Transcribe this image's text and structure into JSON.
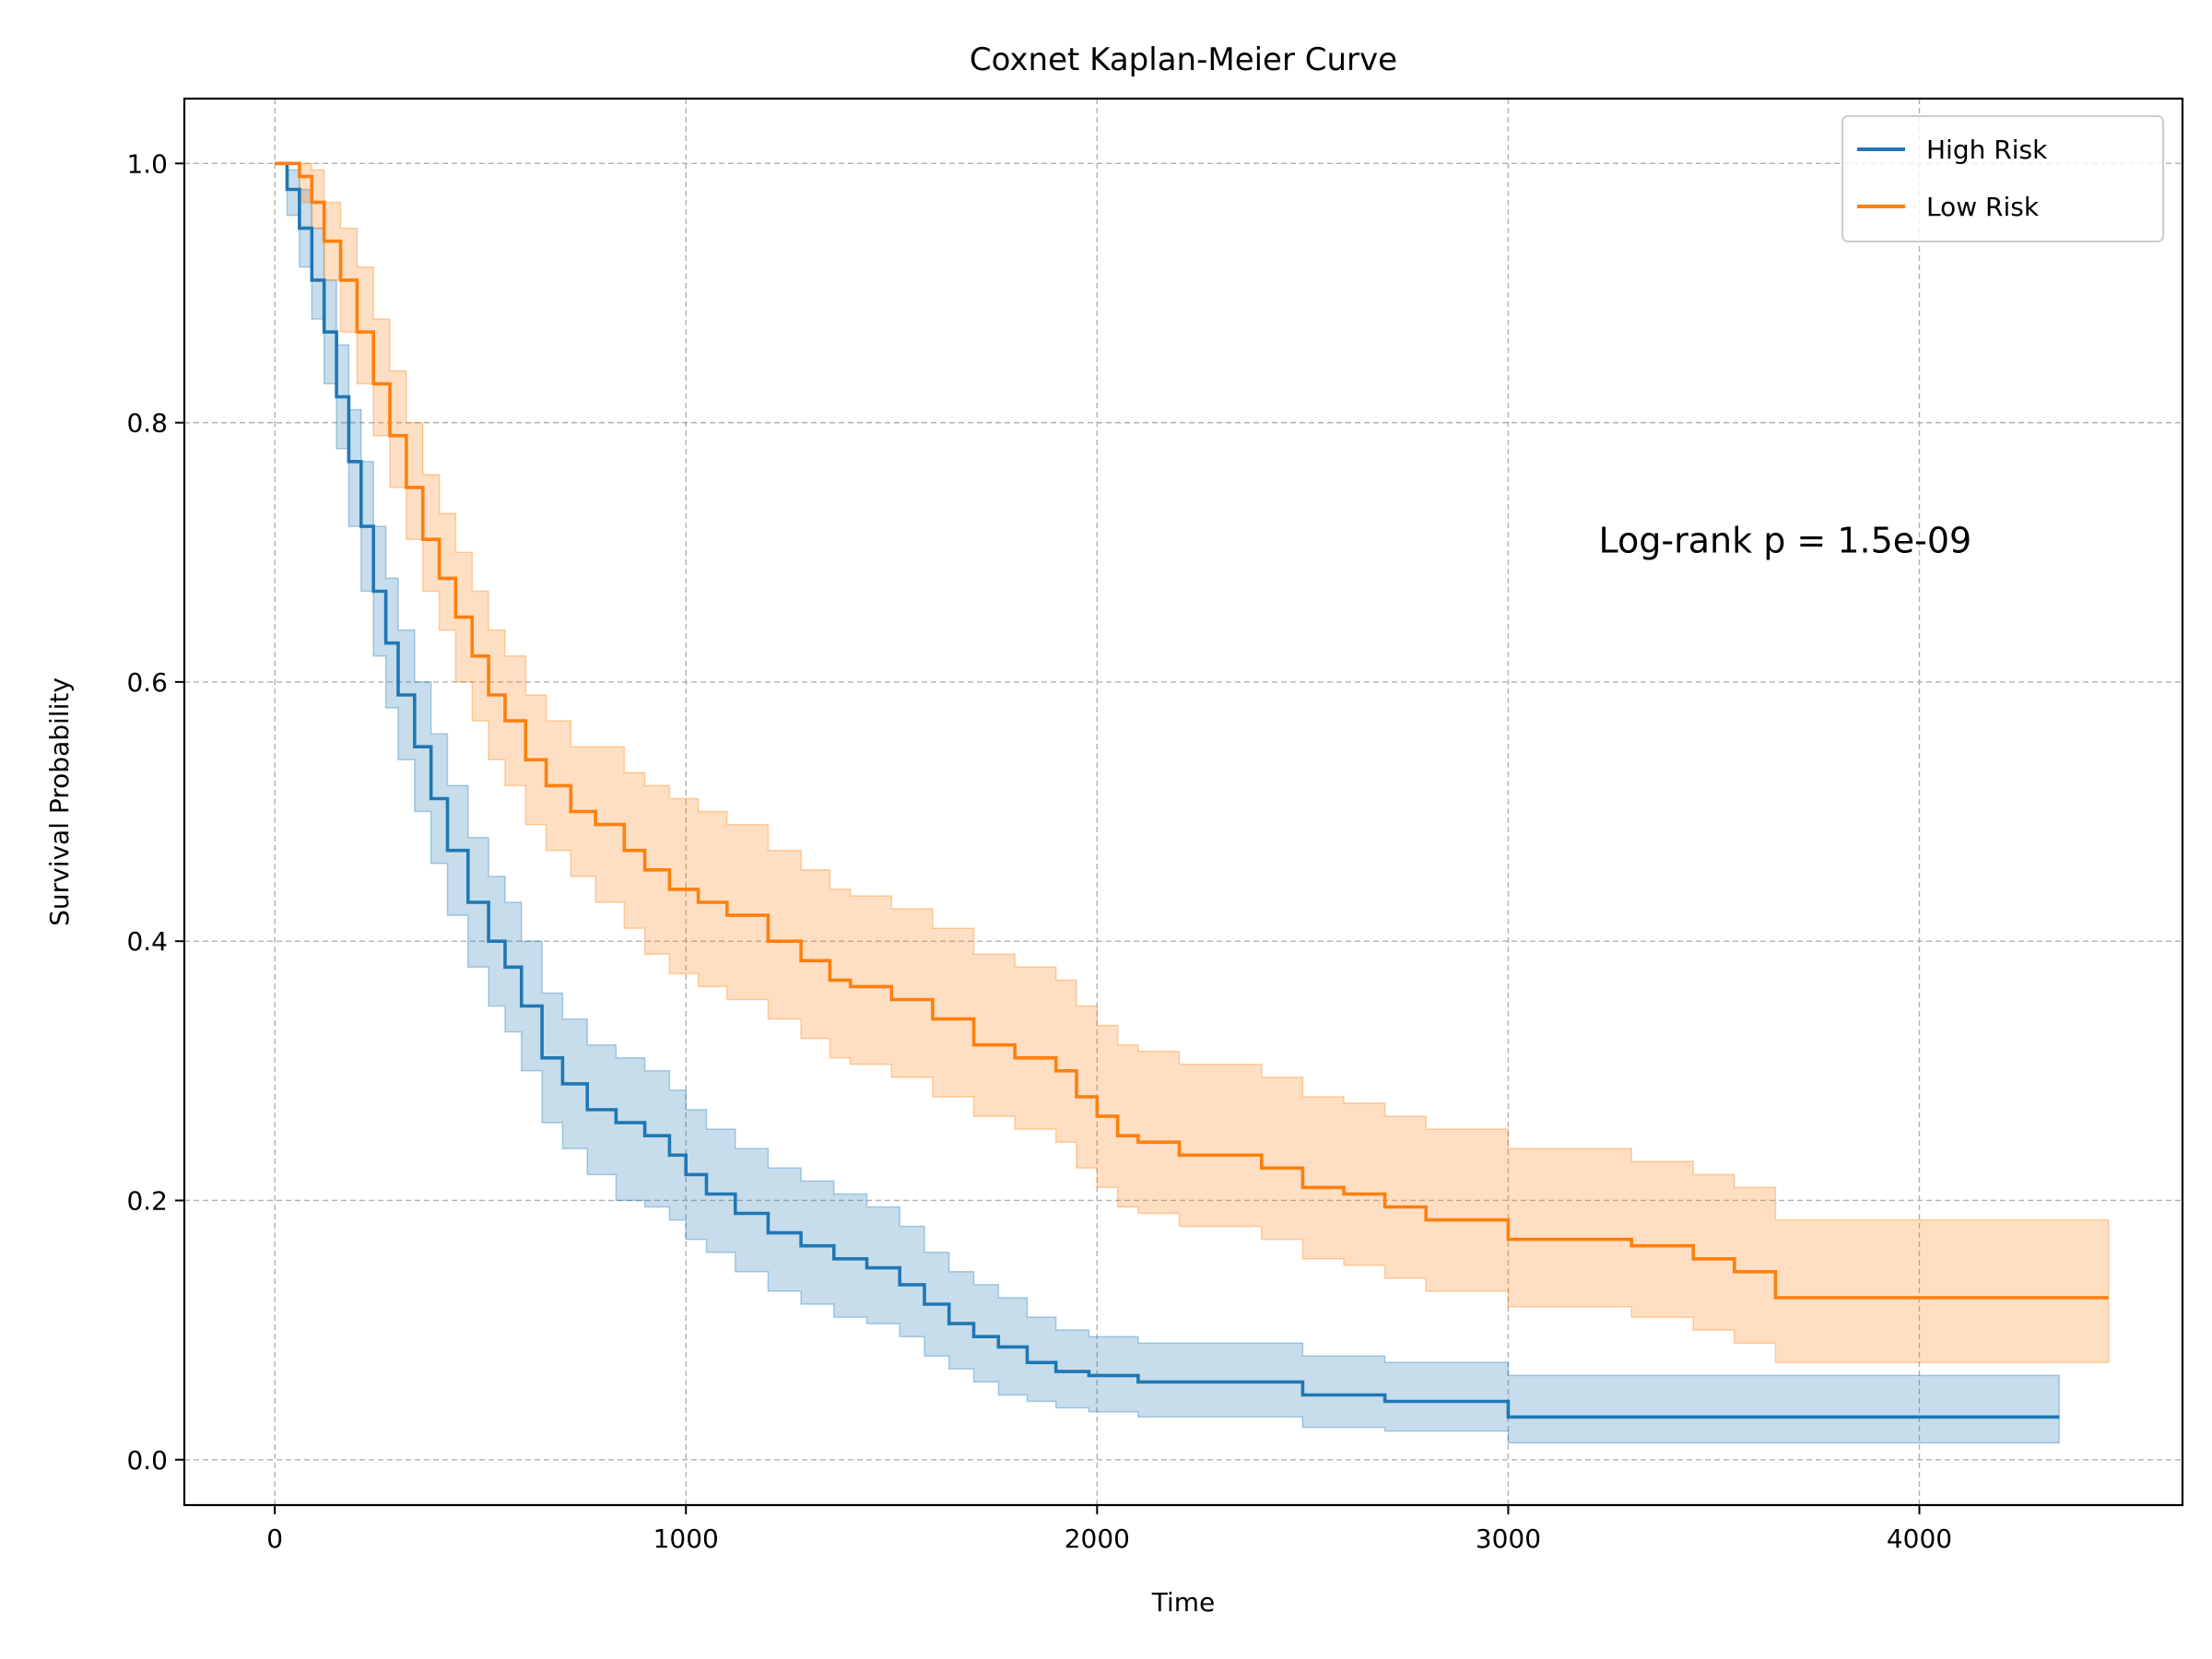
{
  "chart_data": {
    "type": "line",
    "title": "Coxnet Kaplan-Meier Curve",
    "xlabel": "Time",
    "ylabel": "Survival Probability",
    "xlim": [
      -220,
      4640
    ],
    "ylim": [
      -0.035,
      1.05
    ],
    "xticks": [
      0,
      1000,
      2000,
      3000,
      4000
    ],
    "yticks": [
      0.0,
      0.2,
      0.4,
      0.6,
      0.8,
      1.0
    ],
    "xtick_labels": [
      "0",
      "1000",
      "2000",
      "3000",
      "4000"
    ],
    "ytick_labels": [
      "0.0",
      "0.2",
      "0.4",
      "0.6",
      "0.8",
      "1.0"
    ],
    "grid": true,
    "legend_position": "top-right",
    "step": true,
    "annotation": "Log-rank p = 1.5e-09",
    "series": [
      {
        "name": "High Risk",
        "color": "#1f77b4",
        "x": [
          0,
          30,
          60,
          90,
          120,
          150,
          180,
          210,
          240,
          270,
          300,
          340,
          380,
          420,
          470,
          520,
          560,
          600,
          650,
          700,
          760,
          830,
          900,
          960,
          1000,
          1050,
          1120,
          1200,
          1280,
          1360,
          1440,
          1520,
          1580,
          1640,
          1700,
          1760,
          1830,
          1900,
          1980,
          2100,
          2500,
          2700,
          3000,
          4340
        ],
        "y": [
          1.0,
          0.98,
          0.95,
          0.91,
          0.87,
          0.82,
          0.77,
          0.72,
          0.67,
          0.63,
          0.59,
          0.55,
          0.51,
          0.47,
          0.43,
          0.4,
          0.38,
          0.35,
          0.31,
          0.29,
          0.27,
          0.26,
          0.25,
          0.235,
          0.22,
          0.205,
          0.19,
          0.175,
          0.165,
          0.155,
          0.148,
          0.135,
          0.12,
          0.105,
          0.095,
          0.087,
          0.075,
          0.068,
          0.065,
          0.06,
          0.05,
          0.045,
          0.033,
          0.033
        ],
        "ci_lower": [
          1.0,
          0.96,
          0.92,
          0.88,
          0.83,
          0.78,
          0.72,
          0.67,
          0.62,
          0.58,
          0.54,
          0.5,
          0.46,
          0.42,
          0.38,
          0.35,
          0.33,
          0.3,
          0.26,
          0.24,
          0.22,
          0.2,
          0.195,
          0.185,
          0.17,
          0.16,
          0.145,
          0.13,
          0.12,
          0.11,
          0.105,
          0.095,
          0.08,
          0.07,
          0.06,
          0.05,
          0.045,
          0.04,
          0.037,
          0.033,
          0.025,
          0.022,
          0.013,
          0.013
        ],
        "ci_upper": [
          1.0,
          0.995,
          0.98,
          0.95,
          0.91,
          0.86,
          0.81,
          0.77,
          0.72,
          0.68,
          0.64,
          0.6,
          0.56,
          0.52,
          0.48,
          0.45,
          0.43,
          0.4,
          0.36,
          0.34,
          0.32,
          0.31,
          0.3,
          0.285,
          0.27,
          0.255,
          0.24,
          0.225,
          0.215,
          0.205,
          0.195,
          0.18,
          0.16,
          0.145,
          0.135,
          0.125,
          0.11,
          0.1,
          0.095,
          0.09,
          0.08,
          0.075,
          0.065,
          0.065
        ]
      },
      {
        "name": "Low Risk",
        "color": "#ff7f0e",
        "x": [
          0,
          60,
          90,
          120,
          160,
          200,
          240,
          280,
          320,
          360,
          400,
          440,
          480,
          520,
          560,
          610,
          660,
          720,
          780,
          850,
          900,
          960,
          1030,
          1100,
          1200,
          1280,
          1350,
          1400,
          1500,
          1600,
          1700,
          1800,
          1900,
          1950,
          2000,
          2050,
          2100,
          2200,
          2400,
          2500,
          2600,
          2700,
          2800,
          3000,
          3300,
          3450,
          3550,
          3650,
          4460
        ],
        "y": [
          1.0,
          0.99,
          0.97,
          0.94,
          0.91,
          0.87,
          0.83,
          0.79,
          0.75,
          0.71,
          0.68,
          0.65,
          0.62,
          0.59,
          0.57,
          0.54,
          0.52,
          0.5,
          0.49,
          0.47,
          0.455,
          0.44,
          0.43,
          0.42,
          0.4,
          0.385,
          0.37,
          0.365,
          0.355,
          0.34,
          0.32,
          0.31,
          0.3,
          0.28,
          0.265,
          0.25,
          0.245,
          0.235,
          0.225,
          0.21,
          0.205,
          0.195,
          0.185,
          0.17,
          0.165,
          0.155,
          0.145,
          0.125,
          0.125
        ],
        "ci_lower": [
          1.0,
          0.97,
          0.95,
          0.91,
          0.87,
          0.83,
          0.79,
          0.75,
          0.71,
          0.67,
          0.64,
          0.6,
          0.57,
          0.54,
          0.52,
          0.49,
          0.47,
          0.45,
          0.43,
          0.41,
          0.39,
          0.375,
          0.365,
          0.355,
          0.34,
          0.325,
          0.31,
          0.305,
          0.295,
          0.28,
          0.265,
          0.255,
          0.245,
          0.225,
          0.21,
          0.195,
          0.19,
          0.18,
          0.17,
          0.155,
          0.15,
          0.14,
          0.13,
          0.118,
          0.11,
          0.1,
          0.09,
          0.075,
          0.075
        ],
        "ci_upper": [
          1.0,
          1.0,
          0.995,
          0.97,
          0.95,
          0.92,
          0.88,
          0.84,
          0.8,
          0.76,
          0.73,
          0.7,
          0.67,
          0.64,
          0.62,
          0.59,
          0.57,
          0.55,
          0.55,
          0.53,
          0.52,
          0.51,
          0.5,
          0.49,
          0.47,
          0.455,
          0.44,
          0.435,
          0.425,
          0.41,
          0.39,
          0.38,
          0.37,
          0.35,
          0.335,
          0.32,
          0.315,
          0.305,
          0.295,
          0.28,
          0.275,
          0.265,
          0.255,
          0.24,
          0.23,
          0.22,
          0.21,
          0.185,
          0.185
        ]
      }
    ]
  }
}
